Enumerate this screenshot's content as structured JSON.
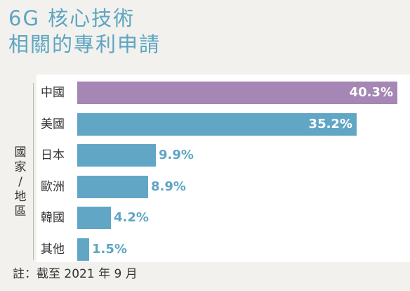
{
  "title_line1": "6G 核心技術",
  "title_line2": "相關的專利申請",
  "y_axis_label": "國家/地區",
  "note": "註：截至 2021 年 9 月",
  "colors": {
    "highlight": "#a586b5",
    "bar": "#62a6c6",
    "title": "#5ea5c2"
  },
  "chart_data": {
    "type": "bar",
    "orientation": "horizontal",
    "title": "6G 核心技術相關的專利申請",
    "xlabel": "",
    "ylabel": "國家/地區",
    "categories": [
      "中國",
      "美國",
      "日本",
      "歐洲",
      "韓國",
      "其他"
    ],
    "values": [
      40.3,
      35.2,
      9.9,
      8.9,
      4.2,
      1.5
    ],
    "labels": [
      "40.3%",
      "35.2%",
      "9.9%",
      "8.9%",
      "4.2%",
      "1.5%"
    ],
    "xlim": [
      0,
      40.3
    ],
    "grid": false
  }
}
